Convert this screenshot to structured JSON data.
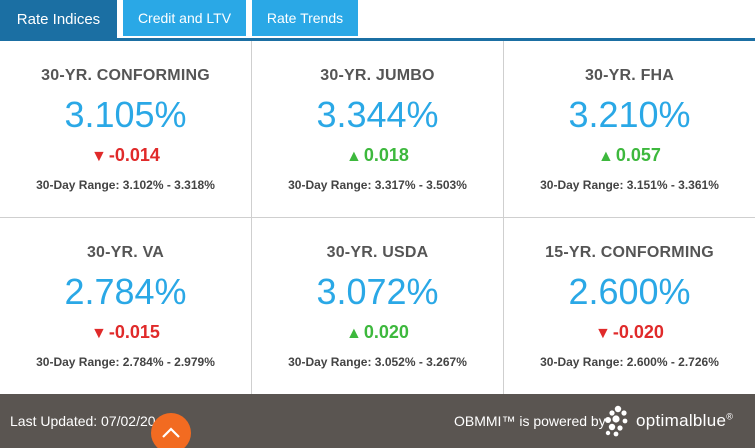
{
  "tabs": [
    {
      "label": "Rate Indices",
      "active": true
    },
    {
      "label": "Credit and LTV",
      "active": false
    },
    {
      "label": "Rate Trends",
      "active": false
    }
  ],
  "indices": [
    {
      "label": "30-YR. CONFORMING",
      "rate": "3.105%",
      "direction": "down",
      "change": "-0.014",
      "range": "30-Day Range: 3.102% - 3.318%"
    },
    {
      "label": "30-YR. JUMBO",
      "rate": "3.344%",
      "direction": "up",
      "change": "0.018",
      "range": "30-Day Range: 3.317% - 3.503%"
    },
    {
      "label": "30-YR. FHA",
      "rate": "3.210%",
      "direction": "up",
      "change": "0.057",
      "range": "30-Day Range: 3.151% - 3.361%"
    },
    {
      "label": "30-YR. VA",
      "rate": "2.784%",
      "direction": "down",
      "change": "-0.015",
      "range": "30-Day Range: 2.784% - 2.979%"
    },
    {
      "label": "30-YR. USDA",
      "rate": "3.072%",
      "direction": "up",
      "change": "0.020",
      "range": "30-Day Range: 3.052% - 3.267%"
    },
    {
      "label": "15-YR. CONFORMING",
      "rate": "2.600%",
      "direction": "down",
      "change": "-0.020",
      "range": "30-Day Range: 2.600% - 2.726%"
    }
  ],
  "arrows": {
    "up": "▲",
    "down": "▼"
  },
  "footer": {
    "last_updated": "Last Updated: 07/02/20",
    "powered_by": "OBMMI™ is powered by",
    "brand": "optimalblue",
    "brand_suffix": "®"
  },
  "colors": {
    "rate_blue": "#2aa8e6",
    "tab_active": "#1b6fa3",
    "down_red": "#e02a2a",
    "up_green": "#3db83d",
    "footer_bg": "#5a5551",
    "scroll_button": "#f26b21"
  },
  "icons": {
    "scroll_top": "chevron-up-icon",
    "logo": "optimalblue-logo-icon"
  }
}
